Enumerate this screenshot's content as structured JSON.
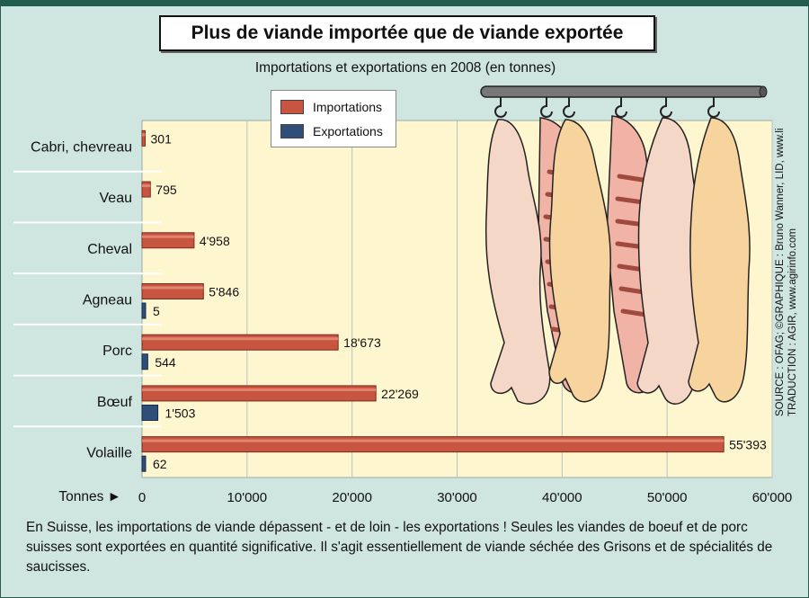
{
  "title": "Plus de viande importée que de viande exportée",
  "source_line1": "SOURCE : OFAG; ©GRAPHIQUE : Bruno Wanner, LID, www.lid.ch",
  "source_line2": "TRADUCTION : AGIR, www.agirinfo.com",
  "caption": "En Suisse, les importations de viande dépassent - et de loin - les exportations ! Seules les viandes de boeuf et de porc suisses sont exportées en quantité significative. Il s'agit essentiellement de viande séchée des Grisons et de spécialités de saucisses.",
  "colors": {
    "import": "#c8553f",
    "export": "#2f4f7a",
    "plot_bg": "#fdf6cf",
    "bg": "#cfe5df"
  },
  "chart_data": {
    "type": "bar",
    "orientation": "horizontal",
    "title": "Importations et exportations en 2008 (en tonnes)",
    "xlabel": "Tonnes ►",
    "categories": [
      "Cabri, chevreau",
      "Veau",
      "Cheval",
      "Agneau",
      "Porc",
      "Bœuf",
      "Volaille"
    ],
    "series": [
      {
        "name": "Importations",
        "values": [
          301,
          795,
          4958,
          5846,
          18673,
          22269,
          55393
        ],
        "labels": [
          "301",
          "795",
          "4'958",
          "5'846",
          "18'673",
          "22'269",
          "55'393"
        ]
      },
      {
        "name": "Exportations",
        "values": [
          null,
          null,
          null,
          5,
          544,
          1503,
          62
        ],
        "labels": [
          "",
          "",
          "",
          "5",
          "544",
          "1'503",
          "62"
        ]
      }
    ],
    "xlim": [
      0,
      60000
    ],
    "xticks": [
      0,
      10000,
      20000,
      30000,
      40000,
      50000,
      60000
    ],
    "xtick_labels": [
      "0",
      "10'000",
      "20'000",
      "30'000",
      "40'000",
      "50'000",
      "60'000"
    ],
    "grid": true,
    "legend_position": "top-left"
  }
}
